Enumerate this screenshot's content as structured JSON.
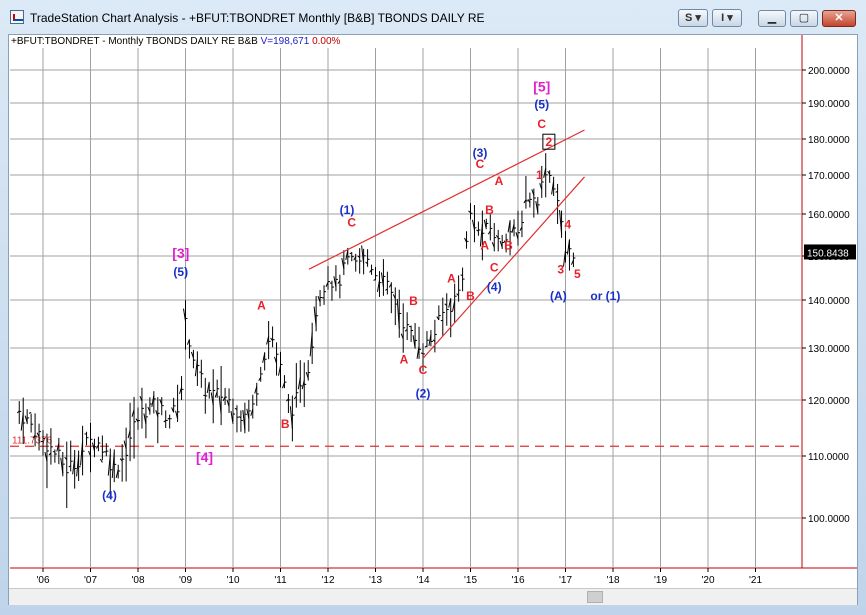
{
  "window": {
    "title": "TradeStation Chart Analysis - +BFUT:TBONDRET Monthly [B&B] TBONDS DAILY RE"
  },
  "toolbar": {
    "s_button": "S",
    "i_button": "I"
  },
  "header": {
    "symbol_desc": "+BFUT:TBONDRET - Monthly  TBONDS DAILY RE  B&B",
    "volume": "V=198,671",
    "pct": "0.00%"
  },
  "last_price": "150.8438",
  "ref_line_label": "111.7376",
  "colors": {
    "bars": "#000000",
    "red": "#e8202a",
    "blue": "#1a2fc8",
    "magenta": "#e020d0",
    "grid": "#a0a0a0",
    "line": "#e03030"
  },
  "chart_data": {
    "type": "ohlc",
    "price_axis": [
      {
        "value": 100,
        "label": "100.0000"
      },
      {
        "value": 110,
        "label": "110.0000"
      },
      {
        "value": 120,
        "label": "120.0000"
      },
      {
        "value": 130,
        "label": "130.0000"
      },
      {
        "value": 140,
        "label": "140.0000"
      },
      {
        "value": 150,
        "label": "150.0000"
      },
      {
        "value": 160,
        "label": "160.0000"
      },
      {
        "value": 170,
        "label": "170.0000"
      },
      {
        "value": 180,
        "label": "180.0000"
      },
      {
        "value": 190,
        "label": "190.0000"
      },
      {
        "value": 200,
        "label": "200.0000"
      }
    ],
    "time_axis": [
      "'06",
      "'07",
      "'08",
      "'09",
      "'10",
      "'11",
      "'12",
      "'13",
      "'14",
      "'15",
      "'16",
      "'17",
      "'18",
      "'19",
      "'20",
      "'21"
    ],
    "reference_value": 111.7376,
    "closes": [
      [
        2005.5,
        118
      ],
      [
        2005.7,
        116
      ],
      [
        2005.9,
        114
      ],
      [
        2006.1,
        112
      ],
      [
        2006.3,
        110
      ],
      [
        2006.5,
        108
      ],
      [
        2006.7,
        109
      ],
      [
        2006.9,
        112
      ],
      [
        2007.1,
        113
      ],
      [
        2007.3,
        111
      ],
      [
        2007.5,
        108
      ],
      [
        2007.7,
        110
      ],
      [
        2007.9,
        115
      ],
      [
        2008.1,
        118
      ],
      [
        2008.3,
        119
      ],
      [
        2008.5,
        118
      ],
      [
        2008.7,
        117
      ],
      [
        2008.9,
        120
      ],
      [
        2009.0,
        135
      ],
      [
        2009.2,
        127
      ],
      [
        2009.4,
        122
      ],
      [
        2009.6,
        121
      ],
      [
        2009.8,
        121
      ],
      [
        2010.0,
        119
      ],
      [
        2010.2,
        117
      ],
      [
        2010.4,
        118
      ],
      [
        2010.6,
        127
      ],
      [
        2010.8,
        133
      ],
      [
        2011.0,
        126
      ],
      [
        2011.2,
        118
      ],
      [
        2011.4,
        121
      ],
      [
        2011.6,
        127
      ],
      [
        2011.8,
        141
      ],
      [
        2012.0,
        145
      ],
      [
        2012.2,
        143
      ],
      [
        2012.4,
        149
      ],
      [
        2012.6,
        148
      ],
      [
        2012.8,
        150
      ],
      [
        2013.0,
        146
      ],
      [
        2013.2,
        144
      ],
      [
        2013.4,
        140
      ],
      [
        2013.6,
        135
      ],
      [
        2013.8,
        132
      ],
      [
        2014.0,
        130
      ],
      [
        2014.2,
        132
      ],
      [
        2014.4,
        137
      ],
      [
        2014.6,
        139
      ],
      [
        2014.8,
        143
      ],
      [
        2015.0,
        160
      ],
      [
        2015.2,
        155
      ],
      [
        2015.4,
        157
      ],
      [
        2015.6,
        153
      ],
      [
        2015.8,
        156
      ],
      [
        2016.0,
        155
      ],
      [
        2016.2,
        165
      ],
      [
        2016.4,
        163
      ],
      [
        2016.6,
        172
      ],
      [
        2016.8,
        166
      ],
      [
        2017.0,
        151
      ],
      [
        2017.2,
        150.8
      ]
    ],
    "trendlines": [
      {
        "from": [
          2011.6,
          147
        ],
        "to": [
          2017.4,
          182.5
        ]
      },
      {
        "from": [
          2014.0,
          128
        ],
        "to": [
          2017.4,
          169.5
        ]
      }
    ],
    "annotations": [
      {
        "text": "[3]",
        "x": 2008.9,
        "y": 149.5,
        "color": "magenta"
      },
      {
        "text": "(5)",
        "x": 2008.9,
        "y": 145.5,
        "color": "blue"
      },
      {
        "text": "[4]",
        "x": 2009.4,
        "y": 109,
        "color": "magenta"
      },
      {
        "text": "(4)",
        "x": 2007.4,
        "y": 103,
        "color": "blue"
      },
      {
        "text": "A",
        "x": 2010.6,
        "y": 138,
        "color": "red"
      },
      {
        "text": "B",
        "x": 2011.1,
        "y": 115,
        "color": "red"
      },
      {
        "text": "(1)",
        "x": 2012.4,
        "y": 160,
        "color": "blue"
      },
      {
        "text": "C",
        "x": 2012.5,
        "y": 157,
        "color": "red"
      },
      {
        "text": "B",
        "x": 2013.8,
        "y": 139,
        "color": "red"
      },
      {
        "text": "A",
        "x": 2013.6,
        "y": 127,
        "color": "red"
      },
      {
        "text": "C",
        "x": 2014.0,
        "y": 125,
        "color": "red"
      },
      {
        "text": "(2)",
        "x": 2014.0,
        "y": 120.5,
        "color": "blue"
      },
      {
        "text": "A",
        "x": 2014.6,
        "y": 144,
        "color": "red"
      },
      {
        "text": "B",
        "x": 2015.0,
        "y": 140,
        "color": "red"
      },
      {
        "text": "(3)",
        "x": 2015.2,
        "y": 175,
        "color": "blue"
      },
      {
        "text": "C",
        "x": 2015.2,
        "y": 172,
        "color": "red"
      },
      {
        "text": "A",
        "x": 2015.6,
        "y": 167.5,
        "color": "red"
      },
      {
        "text": "B",
        "x": 2015.4,
        "y": 160,
        "color": "red"
      },
      {
        "text": "A",
        "x": 2015.3,
        "y": 151.5,
        "color": "red"
      },
      {
        "text": "C",
        "x": 2015.5,
        "y": 146.5,
        "color": "red"
      },
      {
        "text": "B",
        "x": 2015.8,
        "y": 151.5,
        "color": "red"
      },
      {
        "text": "(4)",
        "x": 2015.5,
        "y": 142,
        "color": "blue"
      },
      {
        "text": "[5]",
        "x": 2016.5,
        "y": 193.5,
        "color": "magenta"
      },
      {
        "text": "(5)",
        "x": 2016.5,
        "y": 188.5,
        "color": "blue"
      },
      {
        "text": "C",
        "x": 2016.5,
        "y": 183,
        "color": "red"
      },
      {
        "text": "2",
        "x": 2016.65,
        "y": 178,
        "color": "red"
      },
      {
        "text": "1",
        "x": 2016.45,
        "y": 169,
        "color": "red"
      },
      {
        "text": "4",
        "x": 2017.05,
        "y": 156.5,
        "color": "red"
      },
      {
        "text": "3",
        "x": 2016.9,
        "y": 146,
        "color": "red"
      },
      {
        "text": "5",
        "x": 2017.25,
        "y": 145,
        "color": "red"
      },
      {
        "text": "(A)",
        "x": 2016.85,
        "y": 140,
        "color": "blue"
      },
      {
        "text": "or",
        "x": 2017.65,
        "y": 140,
        "color": "blue"
      },
      {
        "text": "(1)",
        "x": 2018.0,
        "y": 140,
        "color": "blue"
      }
    ]
  }
}
